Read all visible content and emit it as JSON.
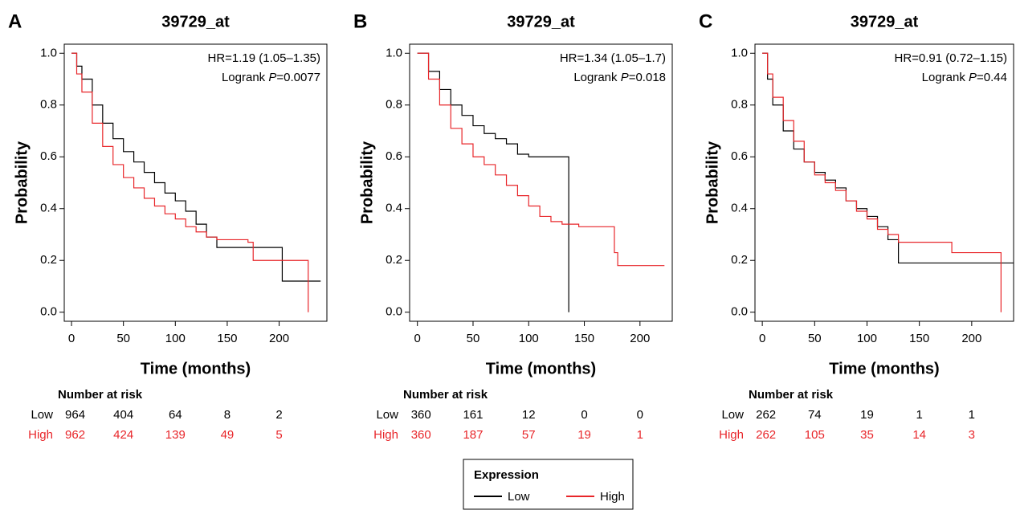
{
  "chart_data": [
    {
      "type": "line",
      "panel": "A",
      "title": "39729_at",
      "xlabel": "Time (months)",
      "ylabel": "Probability",
      "annotation": {
        "hr": "HR=1.19 (1.05–1.35)",
        "logrank": "Logrank ",
        "p": "P",
        "pvalue": "=0.0077"
      },
      "xlim": [
        -7,
        246
      ],
      "ylim": [
        -0.035,
        1.035
      ],
      "xticks": [
        0,
        50,
        100,
        150,
        200
      ],
      "yticks": [
        {
          "value": 0,
          "label": "0.0"
        },
        0.2,
        0.4,
        0.6,
        0.8,
        {
          "value": 1,
          "label": "1.0"
        }
      ],
      "series": [
        {
          "name": "Low",
          "color": "#000000",
          "x": [
            0,
            5,
            10,
            20,
            30,
            40,
            50,
            60,
            70,
            80,
            90,
            100,
            110,
            120,
            130,
            140,
            180,
            203,
            240
          ],
          "values": [
            1,
            0.95,
            0.9,
            0.8,
            0.73,
            0.67,
            0.62,
            0.58,
            0.54,
            0.5,
            0.46,
            0.43,
            0.39,
            0.34,
            0.29,
            0.25,
            0.25,
            0.12,
            0.12
          ]
        },
        {
          "name": "High",
          "color": "#e8262a",
          "x": [
            0,
            5,
            10,
            20,
            30,
            40,
            50,
            60,
            70,
            80,
            90,
            100,
            110,
            120,
            130,
            140,
            170,
            175,
            228,
            228
          ],
          "values": [
            1,
            0.92,
            0.85,
            0.73,
            0.64,
            0.57,
            0.52,
            0.48,
            0.44,
            0.41,
            0.38,
            0.36,
            0.33,
            0.31,
            0.29,
            0.28,
            0.27,
            0.2,
            0.2,
            0
          ]
        }
      ],
      "risk_table": {
        "title": "Number at risk",
        "rows": [
          {
            "name": "Low",
            "color": "#000000",
            "values": [
              964,
              404,
              64,
              8,
              2
            ]
          },
          {
            "name": "High",
            "color": "#e8262a",
            "values": [
              962,
              424,
              139,
              49,
              5
            ]
          }
        ]
      }
    },
    {
      "type": "line",
      "panel": "B",
      "title": "39729_at",
      "xlabel": "Time (months)",
      "ylabel": "Probability",
      "annotation": {
        "hr": "HR=1.34 (1.05–1.7)",
        "logrank": "Logrank ",
        "p": "P",
        "pvalue": "=0.018"
      },
      "xlim": [
        -7,
        229
      ],
      "ylim": [
        -0.035,
        1.035
      ],
      "xticks": [
        0,
        50,
        100,
        150,
        200
      ],
      "yticks": [
        {
          "value": 0,
          "label": "0.0"
        },
        0.2,
        0.4,
        0.6,
        0.8,
        {
          "value": 1,
          "label": "1.0"
        }
      ],
      "series": [
        {
          "name": "Low",
          "color": "#000000",
          "x": [
            0,
            10,
            20,
            30,
            40,
            50,
            60,
            70,
            80,
            90,
            100,
            136,
            136
          ],
          "values": [
            1,
            0.93,
            0.86,
            0.8,
            0.76,
            0.72,
            0.69,
            0.67,
            0.65,
            0.61,
            0.6,
            0.6,
            0
          ]
        },
        {
          "name": "High",
          "color": "#e8262a",
          "x": [
            0,
            10,
            20,
            30,
            40,
            50,
            60,
            70,
            80,
            90,
            100,
            110,
            120,
            130,
            145,
            175,
            177,
            180,
            222
          ],
          "values": [
            1,
            0.9,
            0.8,
            0.71,
            0.65,
            0.6,
            0.57,
            0.53,
            0.49,
            0.45,
            0.41,
            0.37,
            0.35,
            0.34,
            0.33,
            0.33,
            0.23,
            0.18,
            0.18
          ]
        }
      ],
      "risk_table": {
        "title": "Number at risk",
        "rows": [
          {
            "name": "Low",
            "color": "#000000",
            "values": [
              360,
              161,
              12,
              0,
              0
            ]
          },
          {
            "name": "High",
            "color": "#e8262a",
            "values": [
              360,
              187,
              57,
              19,
              1
            ]
          }
        ]
      }
    },
    {
      "type": "line",
      "panel": "C",
      "title": "39729_at",
      "xlabel": "Time (months)",
      "ylabel": "Probability",
      "annotation": {
        "hr": "HR=0.91 (0.72–1.15)",
        "logrank": "Logrank ",
        "p": "P",
        "pvalue": "=0.44"
      },
      "xlim": [
        -7,
        240
      ],
      "ylim": [
        -0.035,
        1.035
      ],
      "xticks": [
        0,
        50,
        100,
        150,
        200
      ],
      "yticks": [
        {
          "value": 0,
          "label": "0.0"
        },
        0.2,
        0.4,
        0.6,
        0.8,
        {
          "value": 1,
          "label": "1.0"
        }
      ],
      "series": [
        {
          "name": "Low",
          "color": "#000000",
          "x": [
            0,
            5,
            10,
            20,
            30,
            40,
            50,
            60,
            70,
            80,
            90,
            100,
            110,
            120,
            130,
            240
          ],
          "values": [
            1,
            0.9,
            0.8,
            0.7,
            0.63,
            0.58,
            0.54,
            0.51,
            0.48,
            0.43,
            0.4,
            0.37,
            0.33,
            0.28,
            0.19,
            0.19
          ]
        },
        {
          "name": "High",
          "color": "#e8262a",
          "x": [
            0,
            5,
            10,
            20,
            30,
            40,
            50,
            60,
            70,
            80,
            90,
            100,
            110,
            120,
            130,
            180,
            181,
            228,
            228
          ],
          "values": [
            1,
            0.92,
            0.83,
            0.74,
            0.66,
            0.58,
            0.53,
            0.5,
            0.47,
            0.43,
            0.39,
            0.36,
            0.32,
            0.3,
            0.27,
            0.27,
            0.23,
            0.23,
            0
          ]
        }
      ],
      "risk_table": {
        "title": "Number at risk",
        "rows": [
          {
            "name": "Low",
            "color": "#000000",
            "values": [
              262,
              74,
              19,
              1,
              1
            ]
          },
          {
            "name": "High",
            "color": "#e8262a",
            "values": [
              262,
              105,
              35,
              14,
              3
            ]
          }
        ]
      }
    }
  ],
  "legend": {
    "title": "Expression"
  }
}
